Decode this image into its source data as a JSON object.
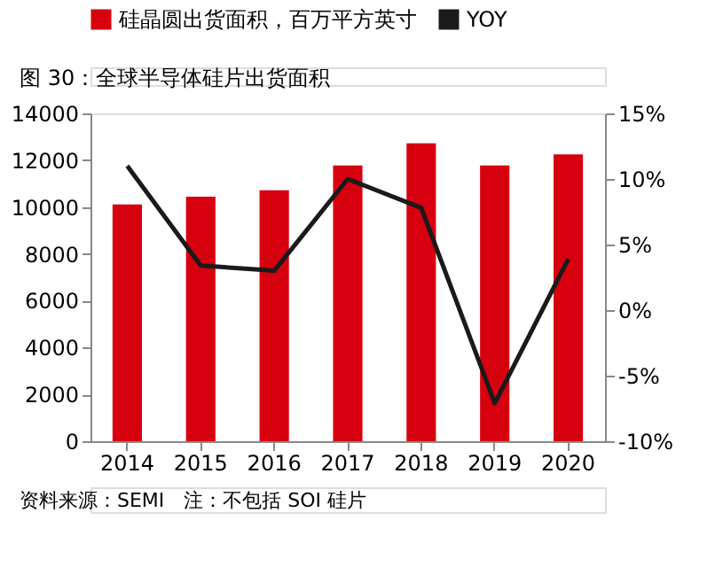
{
  "chart_data": {
    "type": "bar",
    "title": "图 30：全球半导体硅片出货面积",
    "categories": [
      "2014",
      "2015",
      "2016",
      "2017",
      "2018",
      "2019",
      "2020"
    ],
    "series": [
      {
        "name": "硅晶圆出货面积，百万平方英寸",
        "color": "#d7000f",
        "values": [
          10110,
          10440,
          10720,
          11780,
          12720,
          11780,
          12250
        ]
      },
      {
        "name": "YOY",
        "type": "line",
        "axis": "y2",
        "color": "#1a1a1a",
        "values": [
          11.0,
          3.4,
          3.0,
          10.0,
          7.8,
          -7.1,
          3.9
        ]
      }
    ],
    "ylim": [
      0,
      14000
    ],
    "yticks": [
      0,
      2000,
      4000,
      6000,
      8000,
      10000,
      12000,
      14000
    ],
    "y2lim": [
      -10,
      15
    ],
    "y2ticks": [
      {
        "value": -10,
        "label": "-10%"
      },
      {
        "value": -5,
        "label": "-5%"
      },
      {
        "value": 0,
        "label": "0%"
      },
      {
        "value": 5,
        "label": "5%"
      },
      {
        "value": 10,
        "label": "10%"
      },
      {
        "value": 15,
        "label": "15%"
      }
    ],
    "legend": "top",
    "grid": false,
    "marker": "none",
    "line_style": "solid",
    "annotations": [
      "资料来源：SEMI　注：不包括 SOI 硅片"
    ]
  }
}
